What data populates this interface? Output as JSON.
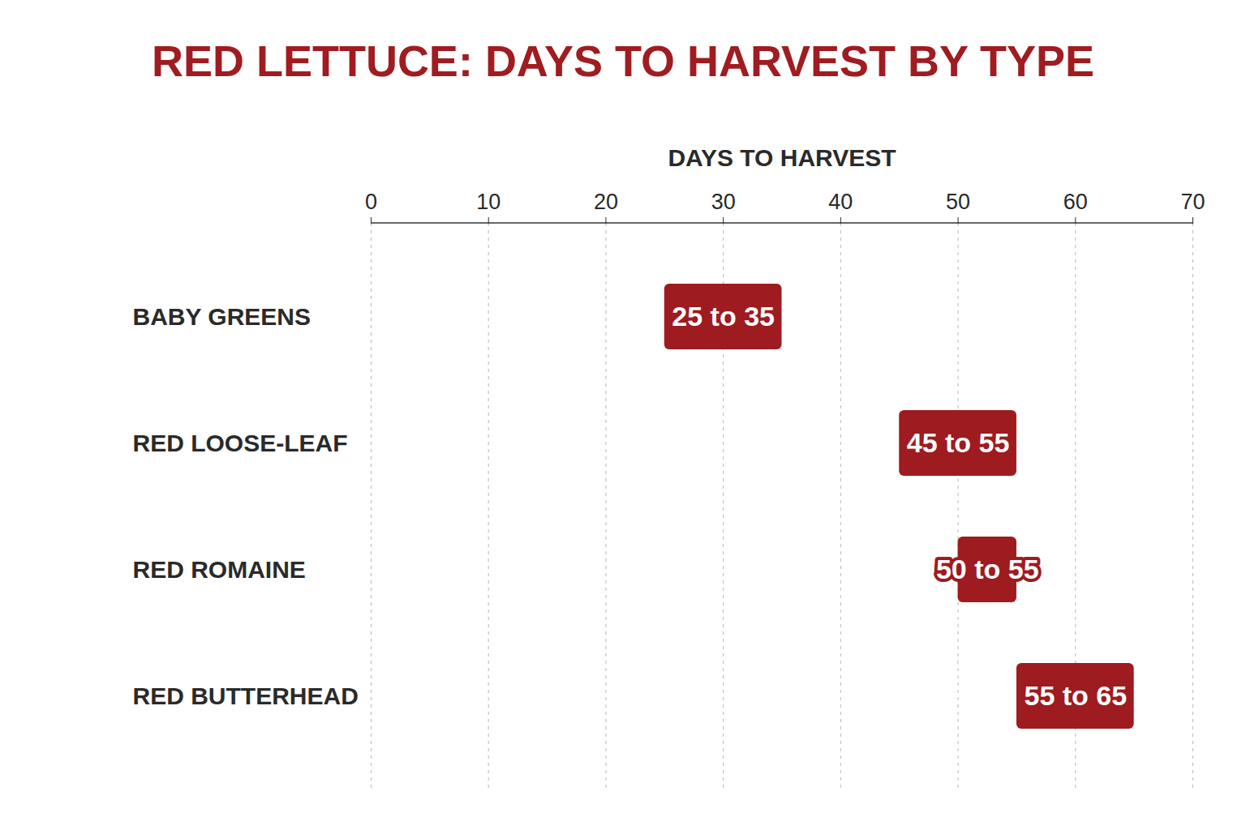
{
  "chart_data": {
    "type": "bar",
    "title": "RED LETTUCE: DAYS TO HARVEST BY TYPE",
    "x_label": "DAYS TO HARVEST",
    "categories": [
      "BABY GREENS",
      "RED LOOSE-LEAF",
      "RED ROMAINE",
      "RED BUTTERHEAD"
    ],
    "values": [
      [
        25,
        35
      ],
      [
        45,
        55
      ],
      [
        50,
        55
      ],
      [
        55,
        65
      ]
    ],
    "value_labels": [
      "25 to 35",
      "45 to 55",
      "50 to 55",
      "55 to 65"
    ],
    "color": "#9e1b1f",
    "orientation": "horizontal",
    "data_labels": true,
    "xlim": [
      0,
      70
    ],
    "xticks": [
      0,
      10,
      20,
      30,
      40,
      50,
      60,
      70
    ],
    "grid": true
  }
}
